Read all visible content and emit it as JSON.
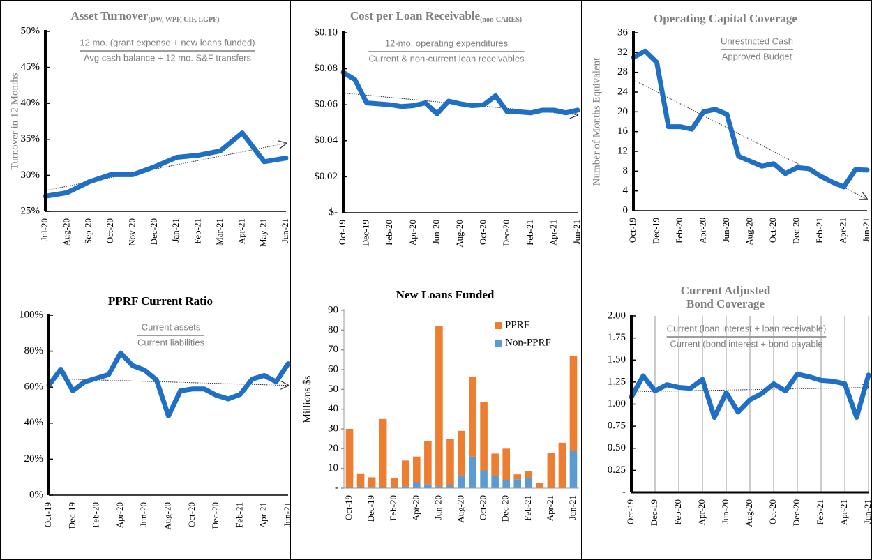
{
  "chart_data": [
    {
      "type": "line",
      "title": "Asset Turnover",
      "title_subscript": "(DW, WPF, CIF, LGPF)",
      "annotation": {
        "numerator": "12 mo. (grant expense + new loans funded)",
        "denominator": "Avg cash balance + 12 mo. S&F transfers"
      },
      "y_label": "Turnover in 12 Months",
      "categories": [
        "Jul-20",
        "Aug-20",
        "Sep-20",
        "Oct-20",
        "Nov-20",
        "Dec-20",
        "Jan-21",
        "Feb-21",
        "Mar-21",
        "Apr-21",
        "May-21",
        "Jun-21"
      ],
      "series": [
        {
          "color": "#1f6fc5",
          "values": [
            27.1,
            27.6,
            29.1,
            30.1,
            30.1,
            31.2,
            32.5,
            32.8,
            33.4,
            35.9,
            31.9,
            32.4
          ]
        }
      ],
      "ylim": [
        25,
        50
      ],
      "yticks": [
        {
          "value": 25,
          "label": "25%"
        },
        {
          "value": 30,
          "label": "30%"
        },
        {
          "value": 35,
          "label": "35%"
        },
        {
          "value": 40,
          "label": "40%"
        },
        {
          "value": 45,
          "label": "45%"
        },
        {
          "value": 50,
          "label": "50%"
        }
      ],
      "trendline": true
    },
    {
      "type": "line",
      "title": "Cost per Loan Receivable",
      "title_subscript": "(non-CARES)",
      "annotation": {
        "numerator": "12-mo. operating expenditures",
        "denominator": "Current & non-current loan receivables"
      },
      "categories": [
        "Oct-19",
        null,
        "Dec-19",
        null,
        "Feb-20",
        null,
        "Apr-20",
        null,
        "Jun-20",
        null,
        "Aug-20",
        null,
        "Oct-20",
        null,
        "Dec-20",
        null,
        "Feb-21",
        null,
        "Apr-21",
        null,
        "Jun-21"
      ],
      "series": [
        {
          "color": "#1f6fc5",
          "values": [
            0.078,
            0.074,
            0.061,
            0.0605,
            0.06,
            0.059,
            0.0595,
            0.061,
            0.055,
            0.062,
            0.0605,
            0.0595,
            0.06,
            0.065,
            0.056,
            0.056,
            0.0555,
            0.057,
            0.057,
            0.0555,
            0.057
          ]
        }
      ],
      "ylim": [
        0,
        0.1
      ],
      "yticks": [
        {
          "value": 0,
          "label": "$-"
        },
        {
          "value": 0.02,
          "label": "$0.02"
        },
        {
          "value": 0.04,
          "label": "$0.04"
        },
        {
          "value": 0.06,
          "label": "$0.06"
        },
        {
          "value": 0.08,
          "label": "$0.08"
        },
        {
          "value": 0.1,
          "label": "$0.10"
        }
      ],
      "trendline": true
    },
    {
      "type": "line",
      "title": "Operating Capital Coverage",
      "annotation": {
        "numerator": "Unrestricted Cash",
        "denominator": "Approved Budget"
      },
      "y_label": "Number of Months Equivalent",
      "categories": [
        "Oct-19",
        null,
        "Dec-19",
        null,
        "Feb-20",
        null,
        "Apr-20",
        null,
        "Jun-20",
        null,
        "Aug-20",
        null,
        "Oct-20",
        null,
        "Dec-20",
        null,
        "Feb-21",
        null,
        "Apr-21",
        null,
        "Jun-21"
      ],
      "series": [
        {
          "color": "#1f6fc5",
          "values": [
            31,
            32.3,
            30,
            17,
            17,
            16.5,
            20,
            20.5,
            19.5,
            11,
            10,
            9,
            9.5,
            7.5,
            8.7,
            8.5,
            7,
            5.8,
            4.8,
            8.3,
            8.2
          ]
        }
      ],
      "ylim": [
        0,
        36
      ],
      "yticks": [
        0,
        4,
        8,
        12,
        16,
        20,
        24,
        28,
        32,
        36
      ],
      "trendline": true
    },
    {
      "type": "line",
      "title": "PPRF Current Ratio",
      "annotation": {
        "numerator": "Current assets",
        "denominator": "Current liabilities"
      },
      "categories": [
        "Oct-19",
        null,
        "Dec-19",
        null,
        "Feb-20",
        null,
        "Apr-20",
        null,
        "Jun-20",
        null,
        "Aug-20",
        null,
        "Oct-20",
        null,
        "Dec-20",
        null,
        "Feb-21",
        null,
        "Apr-21",
        null,
        "Jun-21"
      ],
      "series": [
        {
          "color": "#1f6fc5",
          "values": [
            61,
            70,
            58,
            63,
            65,
            67,
            79,
            72,
            69.5,
            64,
            44,
            58,
            59,
            59,
            55.5,
            53.5,
            56,
            64.5,
            66.5,
            63,
            73
          ]
        }
      ],
      "ylim": [
        0,
        100
      ],
      "yticks": [
        {
          "value": 0,
          "label": "0%"
        },
        {
          "value": 20,
          "label": "20%"
        },
        {
          "value": 40,
          "label": "40%"
        },
        {
          "value": 60,
          "label": "60%"
        },
        {
          "value": 80,
          "label": "80%"
        },
        {
          "value": 100,
          "label": "100%"
        }
      ],
      "trendline": true
    },
    {
      "type": "stacked_bar",
      "title": "New Loans Funded",
      "y_label": "Millions $s",
      "categories": [
        "Oct-19",
        null,
        "Dec-19",
        null,
        "Feb-20",
        null,
        "Apr-20",
        null,
        "Jun-20",
        null,
        "Aug-20",
        null,
        "Oct-20",
        null,
        "Dec-20",
        null,
        "Feb-21",
        null,
        "Apr-21",
        null,
        "Jun-21"
      ],
      "series": [
        {
          "name": "Non-PPRF",
          "color": "#5b9bd5",
          "values": [
            0.5,
            0.5,
            0.3,
            0.5,
            0.5,
            1,
            3,
            2,
            1,
            1.5,
            6.5,
            16,
            9,
            6,
            4,
            4.5,
            5,
            0,
            0,
            0,
            19
          ]
        },
        {
          "name": "PPRF",
          "color": "#ed7d31",
          "values": [
            29.5,
            7,
            5.2,
            34.5,
            4.5,
            13,
            13,
            22,
            81,
            23.5,
            22.5,
            40.5,
            34.5,
            11.5,
            16,
            2.5,
            3.5,
            2.5,
            18,
            23,
            48
          ]
        }
      ],
      "ylim": [
        0,
        90
      ],
      "yticks": [
        {
          "value": 0,
          "label": "-"
        },
        10,
        20,
        30,
        40,
        50,
        60,
        70,
        80,
        90
      ],
      "legend": "upper right"
    },
    {
      "type": "line",
      "title": [
        "Current Adjusted",
        "Bond Coverage"
      ],
      "annotation": {
        "numerator": "Current (loan interest + loan receivable)",
        "denominator": "Current (bond interest + bond payable"
      },
      "categories": [
        "Oct-19",
        null,
        "Dec-19",
        null,
        "Feb-20",
        null,
        "Apr-20",
        null,
        "Jun-20",
        null,
        "Aug-20",
        null,
        "Oct-20",
        null,
        "Dec-20",
        null,
        "Feb-21",
        null,
        "Apr-21",
        null,
        "Jun-21"
      ],
      "series": [
        {
          "color": "#1f6fc5",
          "values": [
            1.08,
            1.32,
            1.15,
            1.22,
            1.19,
            1.18,
            1.28,
            0.85,
            1.13,
            0.91,
            1.05,
            1.12,
            1.23,
            1.15,
            1.34,
            1.31,
            1.27,
            1.26,
            1.23,
            0.85,
            1.33
          ]
        }
      ],
      "ylim": [
        0,
        2
      ],
      "yticks": [
        {
          "value": 0,
          "label": "-"
        },
        0.25,
        {
          "value": 0.5,
          "label": "0.50"
        },
        0.75,
        {
          "value": 1,
          "label": "1.00"
        },
        1.25,
        {
          "value": 1.5,
          "label": "1.50"
        },
        1.75,
        {
          "value": 2,
          "label": "2.00"
        }
      ],
      "xgrid": true,
      "trendline": true
    }
  ]
}
